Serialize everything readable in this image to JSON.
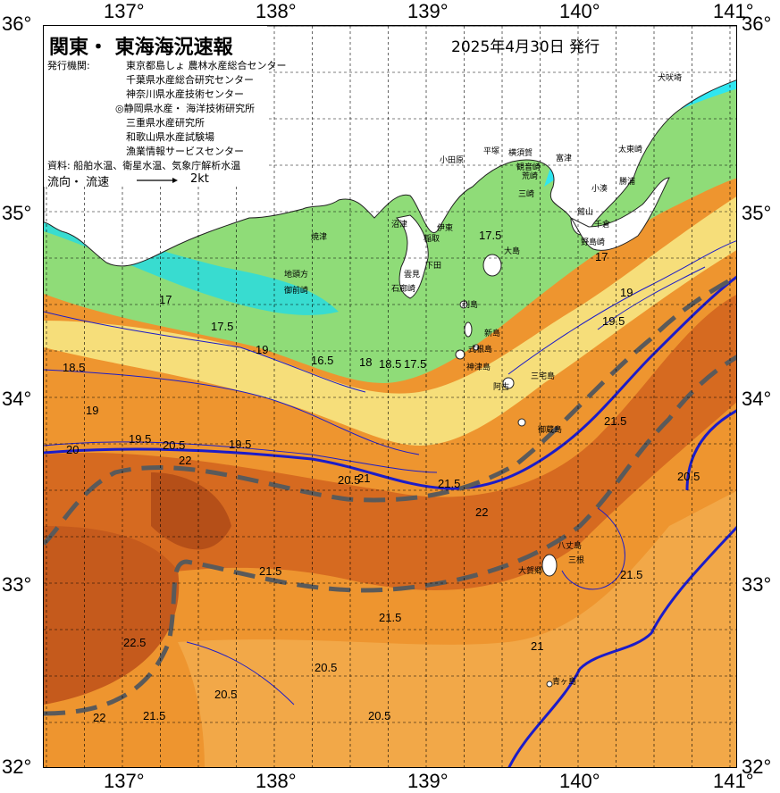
{
  "title": "関東・ 東海海況速報",
  "issue_date": "2025年4月30日 発行",
  "publisher": {
    "label": "発行機関:",
    "orgs": [
      "東京都島しょ 農林水産総合センター",
      "千葉県水産総合研究センター",
      "神奈川県水産技術センター",
      "◎静岡県水産・ 海洋技術研究所",
      "三重県水産研究所",
      "和歌山県水産試験場",
      "漁業情報サービスセンター"
    ]
  },
  "sources": "資料: 船舶水温、衛星水温、気象庁解析水温",
  "current": {
    "label": "流向・ 流速",
    "scale": "2kt"
  },
  "axes": {
    "lon_top": [
      "137°",
      "138°",
      "139°",
      "140°",
      "141°"
    ],
    "lon_bottom": [
      "137°",
      "138°",
      "139°",
      "140°",
      "141°"
    ],
    "lat_left": [
      "36°",
      "35°",
      "34°",
      "33°",
      "32°"
    ],
    "lat_right": [
      "36°",
      "35°",
      "34°",
      "33°",
      "32°"
    ]
  },
  "places": {
    "inubozaki": "犬吠埼",
    "taitozaki": "太東崎",
    "katsuura": "勝浦",
    "kominato": "小湊",
    "chikura": "千倉",
    "funakata": "館山",
    "nojimazaki": "野島崎",
    "tomitsu": "富津",
    "yokosuka": "横須賀",
    "kannonzaki": "観音崎",
    "araizaki": "荒崎",
    "miura": "三崎",
    "hiratsuka": "平塚",
    "odawara": "小田原",
    "ajiro": "網代",
    "izu": "伊東",
    "inatori": "稲取",
    "shimoda": "下田",
    "irozaki": "石廊崎",
    "kumoni": "雲見",
    "numazu": "沼津",
    "yaizu": "焼津",
    "omaezaki": "御前崎",
    "chikyugata": "地頭方",
    "oshima": "大島",
    "toshima": "利島",
    "niijima": "新島",
    "shikinejima": "式根島",
    "kozushima": "神津島",
    "miyake": "三宅島",
    "mikura": "御蔵島",
    "miyakejima2": "阿古",
    "hachijo": "八丈島",
    "ohanase": "大賀郷",
    "mitsune": "三根",
    "aogashima": "青ヶ島"
  },
  "contour_labels": [
    "17",
    "17.5",
    "18",
    "18.5",
    "19",
    "19.5",
    "20",
    "20.5",
    "21",
    "21.5",
    "22",
    "22.5",
    "16.5",
    "17.5"
  ],
  "colors": {
    "cold_cyan": "#33e6e6",
    "cool_green": "#8fe07a",
    "light_yellow": "#f5e08a",
    "orange_warm": "#f0a040",
    "orange_mid": "#e88a2a",
    "orange_deep": "#d0641e",
    "brown_deep": "#b8501a",
    "kuroshio_axis": "#5a5a5a",
    "isotherm_blue": "#1c1cc8",
    "land": "#ffffff"
  }
}
